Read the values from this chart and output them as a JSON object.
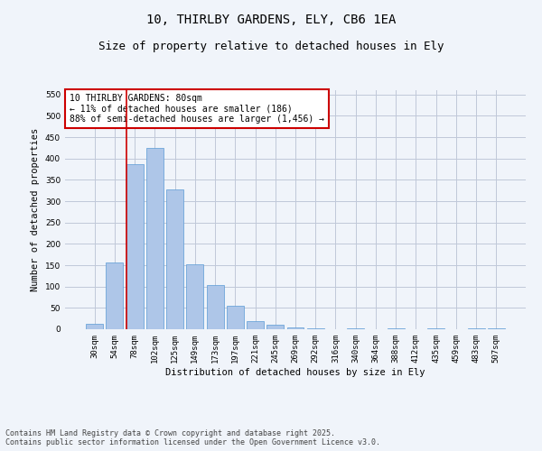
{
  "title_line1": "10, THIRLBY GARDENS, ELY, CB6 1EA",
  "title_line2": "Size of property relative to detached houses in Ely",
  "xlabel": "Distribution of detached houses by size in Ely",
  "ylabel": "Number of detached properties",
  "categories": [
    "30sqm",
    "54sqm",
    "78sqm",
    "102sqm",
    "125sqm",
    "149sqm",
    "173sqm",
    "197sqm",
    "221sqm",
    "245sqm",
    "269sqm",
    "292sqm",
    "316sqm",
    "340sqm",
    "364sqm",
    "388sqm",
    "412sqm",
    "435sqm",
    "459sqm",
    "483sqm",
    "507sqm"
  ],
  "values": [
    13,
    157,
    387,
    425,
    328,
    152,
    103,
    55,
    19,
    10,
    5,
    2,
    0,
    3,
    0,
    2,
    0,
    2,
    0,
    2,
    3
  ],
  "bar_color": "#aec6e8",
  "bar_edge_color": "#5b9bd5",
  "background_color": "#f0f4fa",
  "grid_color": "#c0c8d8",
  "annotation_box_text": "10 THIRLBY GARDENS: 80sqm\n← 11% of detached houses are smaller (186)\n88% of semi-detached houses are larger (1,456) →",
  "annotation_box_color": "#cc0000",
  "vline_x_index": 2,
  "ylim": [
    0,
    560
  ],
  "yticks": [
    0,
    50,
    100,
    150,
    200,
    250,
    300,
    350,
    400,
    450,
    500,
    550
  ],
  "footnote": "Contains HM Land Registry data © Crown copyright and database right 2025.\nContains public sector information licensed under the Open Government Licence v3.0.",
  "title_fontsize": 10,
  "subtitle_fontsize": 9,
  "axis_label_fontsize": 7.5,
  "tick_fontsize": 6.5,
  "annotation_fontsize": 7
}
